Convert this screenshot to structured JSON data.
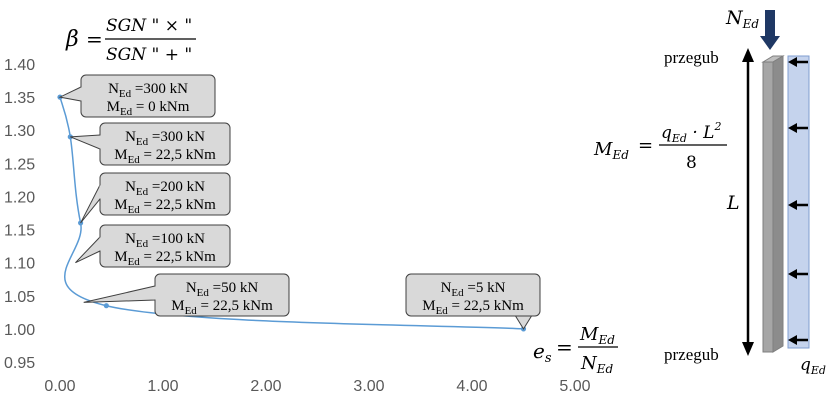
{
  "chart_data": {
    "type": "scatter",
    "x": [
      0.0,
      0.1,
      0.2,
      0.45,
      4.5
    ],
    "y": [
      1.35,
      1.29,
      1.16,
      1.035,
      1.0
    ],
    "xlim": [
      0.0,
      5.0
    ],
    "ylim": [
      0.95,
      1.4
    ],
    "x_ticks": [
      "0.00",
      "1.00",
      "2.00",
      "3.00",
      "4.00",
      "5.00"
    ],
    "y_ticks": [
      "0.95",
      "1.00",
      "1.05",
      "1.10",
      "1.15",
      "1.20",
      "1.25",
      "1.30",
      "1.35",
      "1.40"
    ],
    "line_color": "#5b9bd5",
    "annotations": [
      {
        "n_text": "N",
        "n_sub": "Ed",
        "n_val": " =300 kN",
        "m_text": "M",
        "m_sub": "Ed",
        "m_val": " = 0 kNm"
      },
      {
        "n_text": "N",
        "n_sub": "Ed",
        "n_val": " =300 kN",
        "m_text": "M",
        "m_sub": "Ed",
        "m_val": " = 22,5 kNm"
      },
      {
        "n_text": "N",
        "n_sub": "Ed",
        "n_val": " =200 kN",
        "m_text": "M",
        "m_sub": "Ed",
        "m_val": " = 22,5 kNm"
      },
      {
        "n_text": "N",
        "n_sub": "Ed",
        "n_val": " =100 kN",
        "m_text": "M",
        "m_sub": "Ed",
        "m_val": " = 22,5 kNm"
      },
      {
        "n_text": "N",
        "n_sub": "Ed",
        "n_val": " =50 kN",
        "m_text": "M",
        "m_sub": "Ed",
        "m_val": " = 22,5 kNm"
      },
      {
        "n_text": "N",
        "n_sub": "Ed",
        "n_val": " =5 kN",
        "m_text": "M",
        "m_sub": "Ed",
        "m_val": " = 22,5 kNm"
      }
    ],
    "beta_formula": {
      "lhs": "β",
      "eq": "=",
      "num": "SGN \" × \"",
      "den": "SGN \" + \""
    },
    "es_formula": {
      "lhs": "e",
      "lhs_sub": "s",
      "eq": "=",
      "num": "M",
      "num_sub": "Ed",
      "den": "N",
      "den_sub": "Ed"
    }
  },
  "diagram": {
    "top_force": {
      "text": "N",
      "sub": "Ed"
    },
    "top_support": "przegub",
    "bottom_support": "przegub",
    "length_label": "L",
    "moment_formula": {
      "lhs": "M",
      "lhs_sub": "Ed",
      "eq": "=",
      "num_q": "q",
      "num_q_sub": "Ed",
      "num_rest": " · L",
      "num_pow": "2",
      "den": "8"
    },
    "load_label": {
      "text": "q",
      "sub": "Ed"
    },
    "arrow_color": "#1f3864",
    "column_color": "#a6a6a6",
    "load_color": "#c5d3ed"
  }
}
